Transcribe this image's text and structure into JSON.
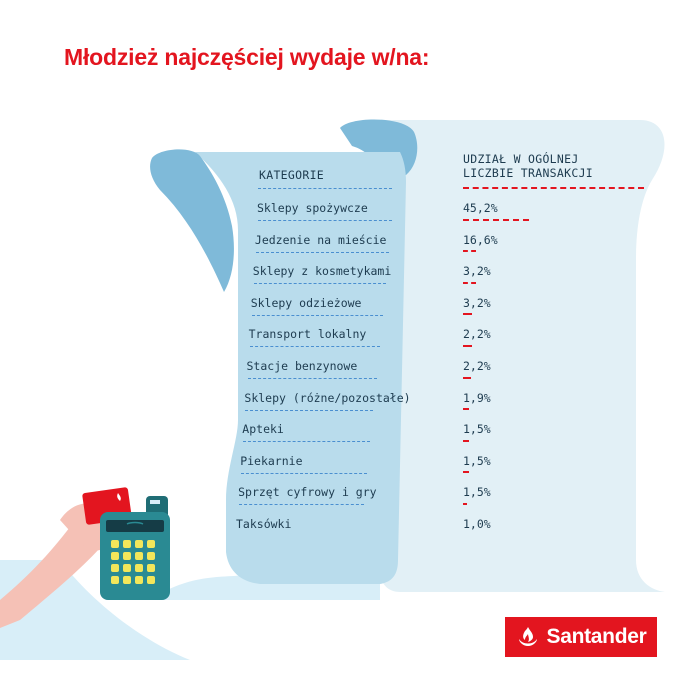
{
  "title": "Młodzież najczęściej wydaje w/na:",
  "brand": {
    "name": "Santander",
    "color": "#e3151f",
    "icon": "santander-flame-icon"
  },
  "illustration": {
    "description_icons": [
      "hand-icon",
      "payment-card-icon",
      "payment-terminal-icon",
      "receipt-paper"
    ]
  },
  "chart_data": {
    "type": "bar",
    "orientation": "horizontal",
    "category_header": "KATEGORIE",
    "value_header": [
      "UDZIAŁ W OGÓLNEJ",
      "LICZBIE TRANSAKCJI"
    ],
    "categories": [
      "Sklepy spożywcze",
      "Jedzenie na mieście",
      "Sklepy z kosmetykami",
      "Sklepy odzieżowe",
      "Transport lokalny",
      "Stacje benzynowe",
      "Sklepy (różne/pozostałe)",
      "Apteki",
      "Piekarnie",
      "Sprzęt cyfrowy i gry",
      "Taksówki"
    ],
    "values": [
      45.2,
      16.6,
      3.2,
      3.2,
      2.2,
      2.2,
      1.9,
      1.5,
      1.5,
      1.5,
      1.0
    ],
    "value_labels": [
      "45,2%",
      "16,6%",
      "3,2%",
      "3,2%",
      "2,2%",
      "2,2%",
      "1,9%",
      "1,5%",
      "1,5%",
      "1,5%",
      "1,0%"
    ],
    "unit": "%",
    "bar_color": "#e3151f",
    "xlim": [
      0,
      100
    ],
    "grid": false,
    "legend": "none"
  }
}
